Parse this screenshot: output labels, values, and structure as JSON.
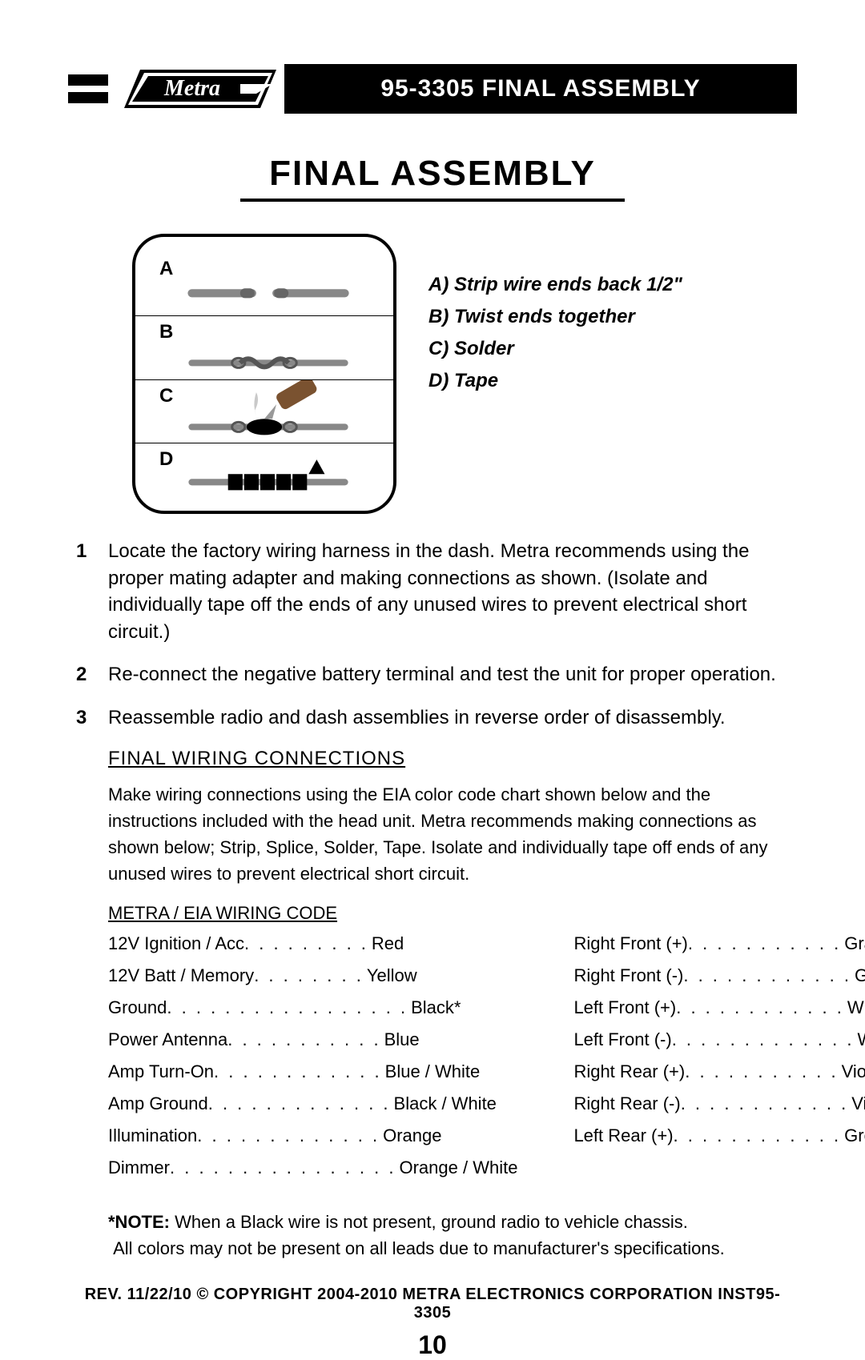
{
  "header": {
    "product_title": "95-3305 FINAL ASSEMBLY",
    "logo_text": "Metra"
  },
  "title": "FINAL ASSEMBLY",
  "diagram": {
    "steps": [
      {
        "id": "A",
        "label": "A",
        "desc": "A) Strip wire ends back 1/2\""
      },
      {
        "id": "B",
        "label": "B",
        "desc": "B) Twist ends together"
      },
      {
        "id": "C",
        "label": "C",
        "desc": "C) Solder"
      },
      {
        "id": "D",
        "label": "D",
        "desc": "D) Tape"
      }
    ]
  },
  "numbered_steps": [
    {
      "n": "1",
      "text": "Locate the factory wiring harness in the dash. Metra recommends using the proper mating adapter and making connections as shown. (Isolate and individually tape off the ends of any unused wires to prevent electrical short circuit.)"
    },
    {
      "n": "2",
      "text": "Re-connect the negative battery terminal and test the unit for proper operation."
    },
    {
      "n": "3",
      "text": "Reassemble radio and dash assemblies in reverse order of disassembly."
    }
  ],
  "wiring": {
    "section_title": "FINAL WIRING CONNECTIONS",
    "paragraph": "Make wiring connections using the EIA color code chart shown below and the instructions included with the head unit. Metra recommends making connections as shown below; Strip, Splice, Solder, Tape. Isolate and individually tape off ends of any unused wires to prevent electrical short circuit.",
    "sub_title": "METRA / EIA WIRING CODE",
    "left": [
      {
        "label": "12V Ignition / Acc",
        "dots": ". . . . . . . . .",
        "value": "Red"
      },
      {
        "label": "12V Batt / Memory",
        "dots": ". . . . . . . .",
        "value": "Yellow"
      },
      {
        "label": "Ground",
        "dots": ". . . . . . . . . . . . . . . . .",
        "value": "Black*"
      },
      {
        "label": "Power Antenna",
        "dots": ". . . . . . . . . . .",
        "value": "Blue"
      },
      {
        "label": "Amp Turn-On",
        "dots": " . . . . . . . . . . . .",
        "value": "Blue / White"
      },
      {
        "label": "Amp Ground",
        "dots": ". . . . . . . . . . . . .",
        "value": "Black / White"
      },
      {
        "label": "Illumination",
        "dots": " . . . . . . . . . . . . .",
        "value": "Orange"
      },
      {
        "label": "Dimmer",
        "dots": " . . . . . . . . . . . . . . . .",
        "value": "Orange / White"
      }
    ],
    "right": [
      {
        "label": "Right Front (+)",
        "dots": " . . . . . . . . . . .",
        "value": "Gray"
      },
      {
        "label": "Right Front (-)",
        "dots": ". . . . . . . . . . . .",
        "value": "Gray/ Black"
      },
      {
        "label": "Left Front (+)",
        "dots": " . . . . . . . . . . . .",
        "value": "White"
      },
      {
        "label": "Left Front (-)",
        "dots": ". . . . . . . . . . . . .",
        "value": "White / Black"
      },
      {
        "label": "Right Rear (+)",
        "dots": " . . . . . . . . . . .",
        "value": "Violet"
      },
      {
        "label": "Right Rear (-)",
        "dots": " . . . . . . . . . . . .",
        "value": "Violet / Black"
      },
      {
        "label": "Left Rear (+)",
        "dots": " . . . . . . . . . . . .",
        "value": "Green"
      }
    ],
    "note_bold": "*NOTE:",
    "note_text": " When a Black wire is not present, ground radio to vehicle chassis.",
    "note_text2": "All colors may not be present on all leads due to manufacturer's specifications."
  },
  "footer": "REV. 11/22/10  © COPYRIGHT 2004-2010 METRA ELECTRONICS CORPORATION  INST95-3305",
  "page_number": "10"
}
